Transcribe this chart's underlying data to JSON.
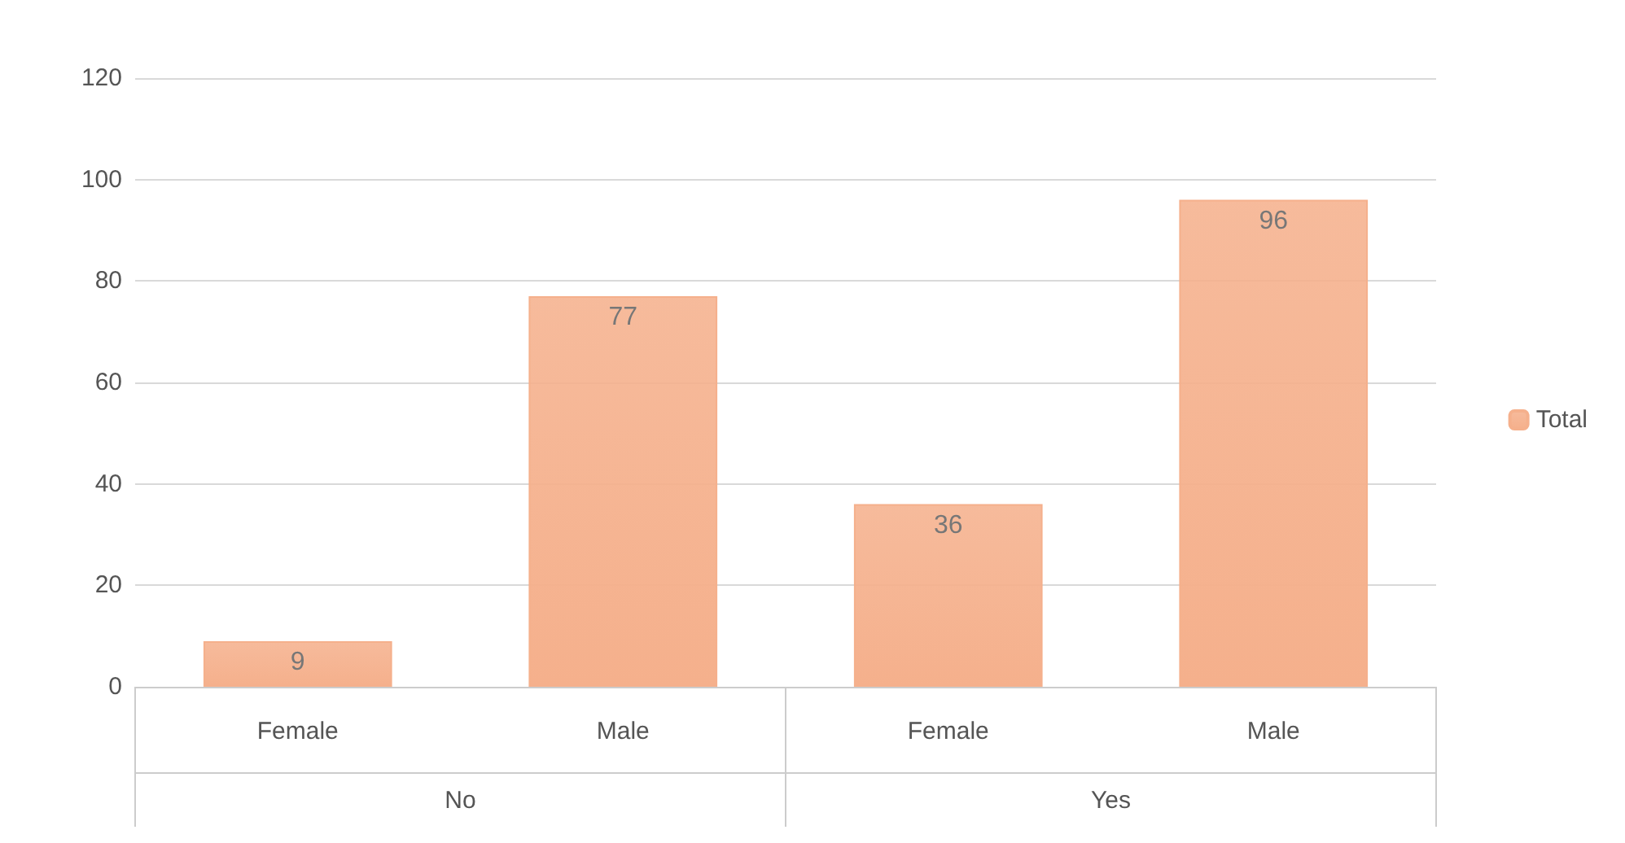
{
  "chart_data": {
    "type": "bar",
    "categories": [
      "Female",
      "Male",
      "Female",
      "Male"
    ],
    "series": [
      {
        "name": "Total",
        "color": "#f5b08c",
        "values": [
          9,
          77,
          36,
          96
        ]
      }
    ],
    "ylim": [
      0,
      120
    ],
    "yticks": [
      0,
      20,
      40,
      60,
      80,
      100,
      120
    ],
    "grid": "y",
    "legend": "right",
    "data_labels": true,
    "annotations": [
      "No",
      "Yes"
    ]
  }
}
